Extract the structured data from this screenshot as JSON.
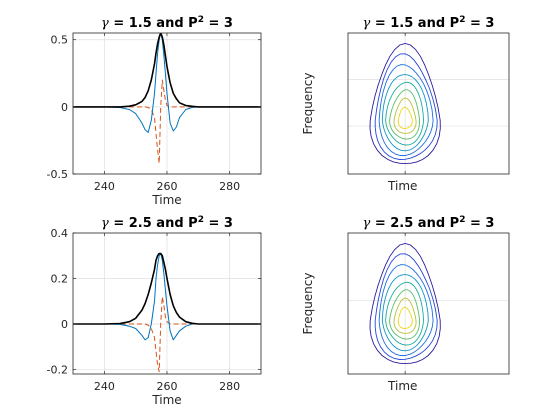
{
  "chart_data": [
    {
      "type": "line",
      "title": "γ = 1.5 and P² = 3",
      "title_parts": {
        "gamma": "γ",
        "mid": " = 1.5 and P",
        "sup": "2",
        "end": " = 3"
      },
      "xlabel": "Time",
      "ylabel": "",
      "xlim": [
        230,
        290
      ],
      "ylim": [
        -0.5,
        0.55
      ],
      "xticks": [
        240,
        260,
        280
      ],
      "yticks": [
        -0.5,
        0,
        0.5
      ],
      "ytick_labels": [
        "-0.5",
        "0",
        "0.5"
      ],
      "grid": true,
      "x": [
        230,
        240,
        245,
        248,
        250,
        252,
        253,
        254,
        255,
        256,
        256.5,
        257,
        257.5,
        258,
        258.5,
        259,
        259.5,
        260,
        261,
        262,
        263,
        264,
        266,
        268,
        270,
        275,
        290
      ],
      "series": [
        {
          "color": "#000000",
          "style": "solid",
          "width": 1.6,
          "values": [
            0,
            0,
            0,
            0.005,
            0.015,
            0.04,
            0.07,
            0.12,
            0.2,
            0.32,
            0.4,
            0.47,
            0.52,
            0.55,
            0.52,
            0.46,
            0.38,
            0.3,
            0.18,
            0.1,
            0.06,
            0.03,
            0.01,
            0.004,
            0,
            0,
            0
          ]
        },
        {
          "color": "#0072BD",
          "style": "solid",
          "width": 1.0,
          "values": [
            0,
            0,
            -0.005,
            -0.02,
            -0.05,
            -0.12,
            -0.17,
            -0.19,
            -0.1,
            0.1,
            0.25,
            0.4,
            0.5,
            0.55,
            0.5,
            0.38,
            0.25,
            0.1,
            -0.12,
            -0.18,
            -0.15,
            -0.08,
            -0.02,
            -0.005,
            0,
            0,
            0
          ]
        },
        {
          "color": "#D95319",
          "style": "dashed",
          "width": 1.0,
          "values": [
            0,
            0,
            0,
            0,
            0,
            0,
            0,
            -0.005,
            -0.02,
            -0.08,
            -0.2,
            -0.32,
            -0.42,
            0.0,
            0.2,
            0.12,
            0.05,
            0.01,
            0,
            0,
            0,
            0,
            0,
            0,
            0,
            0,
            0
          ]
        }
      ]
    },
    {
      "type": "contour",
      "title": "γ = 1.5 and P² = 3",
      "title_parts": {
        "gamma": "γ",
        "mid": " = 1.5 and P",
        "sup": "2",
        "end": " = 3"
      },
      "xlabel": "Time",
      "ylabel": "Frequency",
      "grid": true,
      "levels": 8,
      "colors": [
        "#2a1aa0",
        "#2547d8",
        "#1a6fe0",
        "#1196c8",
        "#1aae9a",
        "#5abf6a",
        "#b6c23a",
        "#f2d41a"
      ]
    },
    {
      "type": "line",
      "title": "γ = 2.5 and P² = 3",
      "title_parts": {
        "gamma": "γ",
        "mid": " = 2.5 and P",
        "sup": "2",
        "end": " = 3"
      },
      "xlabel": "Time",
      "ylabel": "",
      "xlim": [
        230,
        290
      ],
      "ylim": [
        -0.22,
        0.4
      ],
      "xticks": [
        240,
        260,
        280
      ],
      "yticks": [
        -0.2,
        0,
        0.2,
        0.4
      ],
      "ytick_labels": [
        "-0.2",
        "0",
        "0.2",
        "0.4"
      ],
      "grid": true,
      "x": [
        230,
        240,
        245,
        248,
        250,
        252,
        253,
        254,
        255,
        256,
        256.5,
        257,
        257.5,
        258,
        258.5,
        259,
        259.5,
        260,
        261,
        262,
        263,
        264,
        266,
        268,
        270,
        275,
        290
      ],
      "series": [
        {
          "color": "#000000",
          "style": "solid",
          "width": 1.6,
          "values": [
            0,
            0,
            0.002,
            0.01,
            0.025,
            0.06,
            0.09,
            0.13,
            0.18,
            0.24,
            0.28,
            0.3,
            0.31,
            0.31,
            0.3,
            0.27,
            0.24,
            0.2,
            0.13,
            0.08,
            0.05,
            0.03,
            0.01,
            0.003,
            0,
            0,
            0
          ]
        },
        {
          "color": "#0072BD",
          "style": "solid",
          "width": 1.0,
          "values": [
            0,
            0,
            -0.002,
            -0.01,
            -0.02,
            -0.05,
            -0.07,
            -0.06,
            0.0,
            0.1,
            0.2,
            0.26,
            0.3,
            0.31,
            0.28,
            0.22,
            0.15,
            0.08,
            -0.03,
            -0.07,
            -0.05,
            -0.03,
            -0.01,
            0,
            0,
            0,
            0
          ]
        },
        {
          "color": "#D95319",
          "style": "dashed",
          "width": 1.0,
          "values": [
            0,
            0,
            0,
            0,
            0,
            0,
            0,
            -0.005,
            -0.02,
            -0.06,
            -0.12,
            -0.18,
            -0.21,
            0.0,
            0.12,
            0.08,
            0.03,
            0.01,
            0,
            0,
            0,
            0,
            0,
            0,
            0,
            0,
            0
          ]
        }
      ]
    },
    {
      "type": "contour",
      "title": "γ = 2.5 and P² = 3",
      "title_parts": {
        "gamma": "γ",
        "mid": " = 2.5 and P",
        "sup": "2",
        "end": " = 3"
      },
      "xlabel": "Time",
      "ylabel": "Frequency",
      "grid": true,
      "levels": 8,
      "colors": [
        "#2a1aa0",
        "#2547d8",
        "#1a6fe0",
        "#1196c8",
        "#1aae9a",
        "#5abf6a",
        "#b6c23a",
        "#f2d41a"
      ]
    }
  ]
}
